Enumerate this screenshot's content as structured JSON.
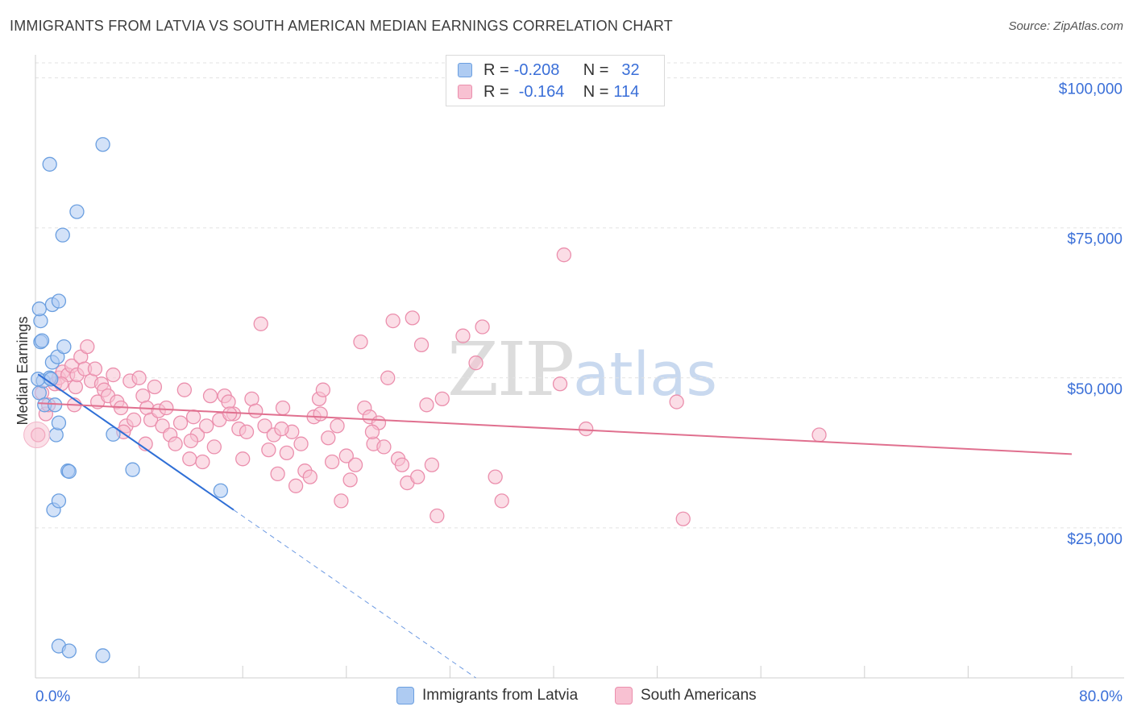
{
  "title": "IMMIGRANTS FROM LATVIA VS SOUTH AMERICAN MEDIAN EARNINGS CORRELATION CHART",
  "source": "Source: ZipAtlas.com",
  "watermark": {
    "zip": "ZIP",
    "atlas": "atlas"
  },
  "legend": {
    "rows": [
      {
        "r_label": "R =",
        "r_value": "-0.208",
        "n_label": "N =",
        "n_value": "32",
        "color": "#aecbf2",
        "border": "#6b9fe0"
      },
      {
        "r_label": "R =",
        "r_value": "-0.164",
        "n_label": "N =",
        "n_value": "114",
        "color": "#f8c1d2",
        "border": "#eb8fad"
      }
    ]
  },
  "bottom_legend": [
    {
      "label": "Immigrants from Latvia",
      "color": "#aecbf2",
      "border": "#6b9fe0"
    },
    {
      "label": "South Americans",
      "color": "#f8c1d2",
      "border": "#eb8fad"
    }
  ],
  "chart_data": {
    "type": "scatter",
    "title": "IMMIGRANTS FROM LATVIA VS SOUTH AMERICAN MEDIAN EARNINGS CORRELATION CHART",
    "xlabel": "",
    "ylabel": "Median Earnings",
    "xlim": [
      0,
      80
    ],
    "ylim": [
      0,
      105000
    ],
    "x_tick_labels": [
      "0.0%",
      "80.0%"
    ],
    "y_ticks": [
      25000,
      50000,
      75000,
      100000
    ],
    "y_tick_labels": [
      "$25,000",
      "$50,000",
      "$75,000",
      "$100,000"
    ],
    "grid": true,
    "series": [
      {
        "name": "Immigrants from Latvia",
        "color": "#6b9fe0",
        "fill": "#aecbf2",
        "points": [
          [
            0.3,
            47.5
          ],
          [
            0.4,
            56.0
          ],
          [
            0.4,
            59.5
          ],
          [
            0.3,
            61.5
          ],
          [
            0.5,
            56.2
          ],
          [
            0.6,
            49.5
          ],
          [
            0.7,
            45.5
          ],
          [
            1.1,
            50.0
          ],
          [
            1.2,
            49.8
          ],
          [
            1.3,
            62.2
          ],
          [
            1.1,
            85.6
          ],
          [
            1.3,
            52.6
          ],
          [
            1.4,
            28.0
          ],
          [
            1.5,
            45.5
          ],
          [
            1.6,
            40.5
          ],
          [
            1.7,
            53.5
          ],
          [
            1.8,
            42.5
          ],
          [
            1.8,
            29.5
          ],
          [
            1.8,
            5.3
          ],
          [
            1.8,
            62.8
          ],
          [
            2.1,
            73.8
          ],
          [
            2.2,
            55.2
          ],
          [
            2.5,
            34.5
          ],
          [
            2.6,
            34.4
          ],
          [
            2.6,
            4.5
          ],
          [
            3.2,
            77.7
          ],
          [
            5.2,
            88.9
          ],
          [
            5.2,
            3.7
          ],
          [
            6.0,
            40.6
          ],
          [
            7.5,
            34.7
          ],
          [
            14.3,
            31.2
          ],
          [
            0.2,
            49.8
          ]
        ],
        "trend": {
          "x0": 0.2,
          "y0": 50.6,
          "x1": 15.3,
          "y1": 28.0,
          "dash_x1": 34.0,
          "dash_y1": 0.0
        }
      },
      {
        "name": "South Americans",
        "color": "#eb8fad",
        "fill": "#f8c1d2",
        "points": [
          [
            0.2,
            40.5
          ],
          [
            0.5,
            47.5
          ],
          [
            0.8,
            44.0
          ],
          [
            1.0,
            45.5
          ],
          [
            1.5,
            49.0
          ],
          [
            1.8,
            50.0
          ],
          [
            2.1,
            51.0
          ],
          [
            2.5,
            50.5
          ],
          [
            2.8,
            52.0
          ],
          [
            3.1,
            48.5
          ],
          [
            3.2,
            50.5
          ],
          [
            3.5,
            53.5
          ],
          [
            3.8,
            51.5
          ],
          [
            4.0,
            55.2
          ],
          [
            4.3,
            49.5
          ],
          [
            4.6,
            51.5
          ],
          [
            4.8,
            46.0
          ],
          [
            5.1,
            49.0
          ],
          [
            5.3,
            48.0
          ],
          [
            5.6,
            47.0
          ],
          [
            6.0,
            50.5
          ],
          [
            6.3,
            46.0
          ],
          [
            6.6,
            45.0
          ],
          [
            7.0,
            42.0
          ],
          [
            7.3,
            49.5
          ],
          [
            7.6,
            43.0
          ],
          [
            8.0,
            50.0
          ],
          [
            8.3,
            47.0
          ],
          [
            8.6,
            45.0
          ],
          [
            8.9,
            43.0
          ],
          [
            9.2,
            48.5
          ],
          [
            9.5,
            44.5
          ],
          [
            9.8,
            42.0
          ],
          [
            10.1,
            45.0
          ],
          [
            10.4,
            40.5
          ],
          [
            10.8,
            39.0
          ],
          [
            11.2,
            42.5
          ],
          [
            11.5,
            48.0
          ],
          [
            11.9,
            36.5
          ],
          [
            12.2,
            43.5
          ],
          [
            12.5,
            40.5
          ],
          [
            12.9,
            36.0
          ],
          [
            13.2,
            42.0
          ],
          [
            13.5,
            47.0
          ],
          [
            13.8,
            38.5
          ],
          [
            14.2,
            43.0
          ],
          [
            14.6,
            47.0
          ],
          [
            14.9,
            46.0
          ],
          [
            15.3,
            44.0
          ],
          [
            15.7,
            41.5
          ],
          [
            16.0,
            36.5
          ],
          [
            16.3,
            41.0
          ],
          [
            16.7,
            46.5
          ],
          [
            17.0,
            44.5
          ],
          [
            17.4,
            59.0
          ],
          [
            17.7,
            42.0
          ],
          [
            18.0,
            38.0
          ],
          [
            18.4,
            40.5
          ],
          [
            18.7,
            34.0
          ],
          [
            19.1,
            45.0
          ],
          [
            19.4,
            37.5
          ],
          [
            19.8,
            41.0
          ],
          [
            20.1,
            32.0
          ],
          [
            20.5,
            39.0
          ],
          [
            20.8,
            34.5
          ],
          [
            21.2,
            33.5
          ],
          [
            21.5,
            43.5
          ],
          [
            21.9,
            46.5
          ],
          [
            22.2,
            48.0
          ],
          [
            22.6,
            40.0
          ],
          [
            22.9,
            36.0
          ],
          [
            23.3,
            42.0
          ],
          [
            23.6,
            29.5
          ],
          [
            24.0,
            37.0
          ],
          [
            24.3,
            33.0
          ],
          [
            24.7,
            35.5
          ],
          [
            25.1,
            56.0
          ],
          [
            25.4,
            45.0
          ],
          [
            25.8,
            43.5
          ],
          [
            26.1,
            39.0
          ],
          [
            26.5,
            42.5
          ],
          [
            26.9,
            38.5
          ],
          [
            27.2,
            50.0
          ],
          [
            27.6,
            59.5
          ],
          [
            28.0,
            36.5
          ],
          [
            28.3,
            35.5
          ],
          [
            28.7,
            32.5
          ],
          [
            29.1,
            60.0
          ],
          [
            29.5,
            33.5
          ],
          [
            29.8,
            55.5
          ],
          [
            30.2,
            45.5
          ],
          [
            30.6,
            35.5
          ],
          [
            31.0,
            27.0
          ],
          [
            31.4,
            46.5
          ],
          [
            33.0,
            57.0
          ],
          [
            34.0,
            52.5
          ],
          [
            34.5,
            58.5
          ],
          [
            35.5,
            33.5
          ],
          [
            36.0,
            29.5
          ],
          [
            40.5,
            49.0
          ],
          [
            40.8,
            70.5
          ],
          [
            42.5,
            41.5
          ],
          [
            49.5,
            46.0
          ],
          [
            50.0,
            26.5
          ],
          [
            60.5,
            40.5
          ],
          [
            2.0,
            49.0
          ],
          [
            3.0,
            45.5
          ],
          [
            6.8,
            41.0
          ],
          [
            8.5,
            39.0
          ],
          [
            12.0,
            39.5
          ],
          [
            15.0,
            44.0
          ],
          [
            19.0,
            41.5
          ],
          [
            22.0,
            44.0
          ],
          [
            26.0,
            41.0
          ]
        ],
        "trend": {
          "x0": 0.2,
          "y0": 45.8,
          "x1": 80.0,
          "y1": 37.3
        }
      }
    ]
  }
}
